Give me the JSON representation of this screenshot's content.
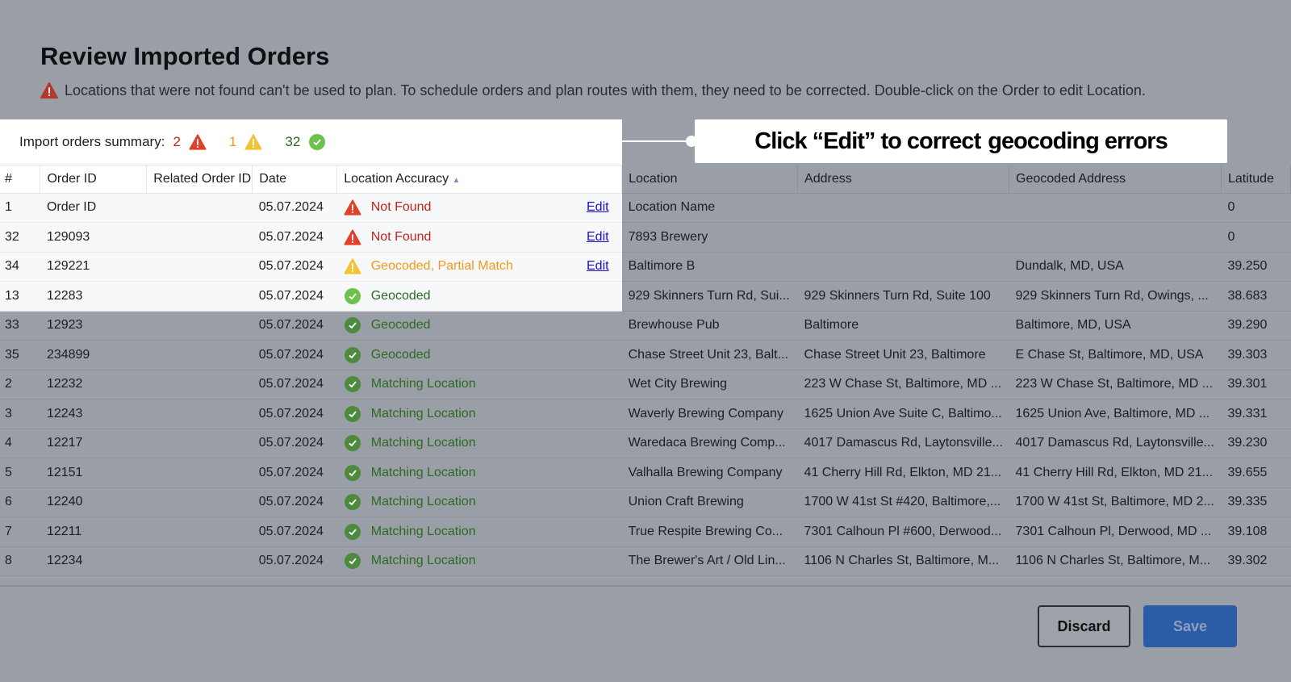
{
  "page": {
    "title": "Review Imported Orders",
    "notice": "Locations that were not found can't be used to plan. To schedule orders and plan routes with them, they need to be corrected. Double-click on the Order to edit Location."
  },
  "summary": {
    "label": "Import orders summary:",
    "errors": "2",
    "warnings": "1",
    "ok": "32"
  },
  "columns": [
    "#",
    "Order ID",
    "Related Order ID",
    "Date",
    "Location Accuracy",
    "Location",
    "Address",
    "Geocoded Address",
    "Latitude"
  ],
  "edit_label": "Edit",
  "rows": [
    {
      "n": "1",
      "id": "Order ID",
      "rel": "",
      "date": "05.07.2024",
      "status": "Not Found",
      "kind": "error",
      "edit": true,
      "loc": "Location Name",
      "addr": "",
      "geo": "",
      "lat": "0"
    },
    {
      "n": "32",
      "id": "129093",
      "rel": "",
      "date": "05.07.2024",
      "status": "Not Found",
      "kind": "error",
      "edit": true,
      "loc": "7893 Brewery",
      "addr": "",
      "geo": "",
      "lat": "0"
    },
    {
      "n": "34",
      "id": "129221",
      "rel": "",
      "date": "05.07.2024",
      "status": "Geocoded, Partial Match",
      "kind": "warning",
      "edit": true,
      "loc": "Baltimore B",
      "addr": "",
      "geo": "Dundalk, MD, USA",
      "lat": "39.250"
    },
    {
      "n": "13",
      "id": "12283",
      "rel": "",
      "date": "05.07.2024",
      "status": "Geocoded",
      "kind": "ok",
      "loc": "929 Skinners Turn Rd, Sui...",
      "addr": "929 Skinners Turn Rd, Suite 100",
      "geo": "929 Skinners Turn Rd, Owings, ...",
      "lat": "38.683"
    },
    {
      "n": "33",
      "id": "12923",
      "rel": "",
      "date": "05.07.2024",
      "status": "Geocoded",
      "kind": "ok",
      "loc": "Brewhouse Pub",
      "addr": "Baltimore",
      "geo": "Baltimore, MD, USA",
      "lat": "39.290"
    },
    {
      "n": "35",
      "id": "234899",
      "rel": "",
      "date": "05.07.2024",
      "status": "Geocoded",
      "kind": "ok",
      "loc": "Chase Street Unit 23, Balt...",
      "addr": "Chase Street Unit 23, Baltimore",
      "geo": "E Chase St, Baltimore, MD, USA",
      "lat": "39.303"
    },
    {
      "n": "2",
      "id": "12232",
      "rel": "",
      "date": "05.07.2024",
      "status": "Matching Location",
      "kind": "ok",
      "loc": "Wet City Brewing",
      "addr": "223 W Chase St, Baltimore, MD ...",
      "geo": "223 W Chase St, Baltimore, MD ...",
      "lat": "39.301"
    },
    {
      "n": "3",
      "id": "12243",
      "rel": "",
      "date": "05.07.2024",
      "status": "Matching Location",
      "kind": "ok",
      "loc": "Waverly Brewing Company",
      "addr": "1625 Union Ave Suite C, Baltimo...",
      "geo": "1625 Union Ave, Baltimore, MD ...",
      "lat": "39.331"
    },
    {
      "n": "4",
      "id": "12217",
      "rel": "",
      "date": "05.07.2024",
      "status": "Matching Location",
      "kind": "ok",
      "loc": "Waredaca Brewing Comp...",
      "addr": "4017 Damascus Rd, Laytonsville...",
      "geo": "4017 Damascus Rd, Laytonsville...",
      "lat": "39.230"
    },
    {
      "n": "5",
      "id": "12151",
      "rel": "",
      "date": "05.07.2024",
      "status": "Matching Location",
      "kind": "ok",
      "loc": "Valhalla Brewing Company",
      "addr": "41 Cherry Hill Rd, Elkton, MD 21...",
      "geo": "41 Cherry Hill Rd, Elkton, MD 21...",
      "lat": "39.655"
    },
    {
      "n": "6",
      "id": "12240",
      "rel": "",
      "date": "05.07.2024",
      "status": "Matching Location",
      "kind": "ok",
      "loc": "Union Craft Brewing",
      "addr": "1700 W 41st St #420, Baltimore,...",
      "geo": "1700 W 41st St, Baltimore, MD 2...",
      "lat": "39.335"
    },
    {
      "n": "7",
      "id": "12211",
      "rel": "",
      "date": "05.07.2024",
      "status": "Matching Location",
      "kind": "ok",
      "loc": "True Respite Brewing Co...",
      "addr": "7301 Calhoun Pl #600, Derwood...",
      "geo": "7301 Calhoun Pl, Derwood, MD ...",
      "lat": "39.108"
    },
    {
      "n": "8",
      "id": "12234",
      "rel": "",
      "date": "05.07.2024",
      "status": "Matching Location",
      "kind": "ok",
      "loc": "The Brewer's Art / Old Lin...",
      "addr": "1106 N Charles St, Baltimore, M...",
      "geo": "1106 N Charles St, Baltimore, M...",
      "lat": "39.302"
    }
  ],
  "callout": {
    "line1": "Click “Edit” to correct",
    "line2": "geocoding errors"
  },
  "footer": {
    "discard": "Discard",
    "save": "Save"
  },
  "colors": {
    "error": "#e0412c",
    "warning": "#f2c335",
    "ok": "#6cc24a",
    "save": "#2b5ca8"
  }
}
